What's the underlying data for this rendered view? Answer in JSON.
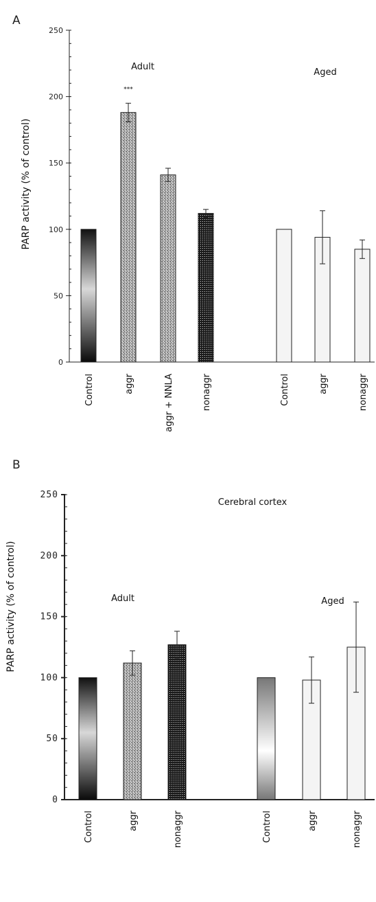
{
  "chart_data": [
    {
      "panel": "A",
      "type": "bar",
      "ylabel": "PARP activity (% of control)",
      "ylim": [
        0,
        250
      ],
      "yticks": [
        0,
        50,
        100,
        150,
        200,
        250
      ],
      "group_labels": [
        "Adult",
        "Aged"
      ],
      "categories": [
        "Control",
        "aggr",
        "aggr + NNLA",
        "nonaggr",
        "Control",
        "aggr",
        "nonaggr"
      ],
      "values": [
        100,
        188,
        141,
        112,
        100,
        94,
        85
      ],
      "errors": [
        0,
        7,
        5,
        3,
        0,
        20,
        7
      ],
      "significance": [
        "",
        "***",
        "",
        "",
        "",
        "",
        ""
      ],
      "fills": [
        "gradient-dark",
        "speckle",
        "speckle",
        "dots-dark",
        "light",
        "light",
        "light"
      ]
    },
    {
      "panel": "B",
      "type": "bar",
      "title": "Cerebral cortex",
      "ylabel": "PARP activity (% of control)",
      "ylim": [
        0,
        250
      ],
      "yticks": [
        0,
        50,
        100,
        150,
        200,
        250
      ],
      "group_labels": [
        "Adult",
        "Aged"
      ],
      "categories": [
        "Control",
        "aggr",
        "nonaggr",
        "Control",
        "aggr",
        "nonaggr"
      ],
      "values": [
        100,
        112,
        127,
        100,
        98,
        125
      ],
      "errors": [
        0,
        10,
        11,
        0,
        19,
        37
      ],
      "fills": [
        "gradient-dark",
        "speckle",
        "dots-dark",
        "gradient-mid",
        "light",
        "light"
      ]
    }
  ]
}
